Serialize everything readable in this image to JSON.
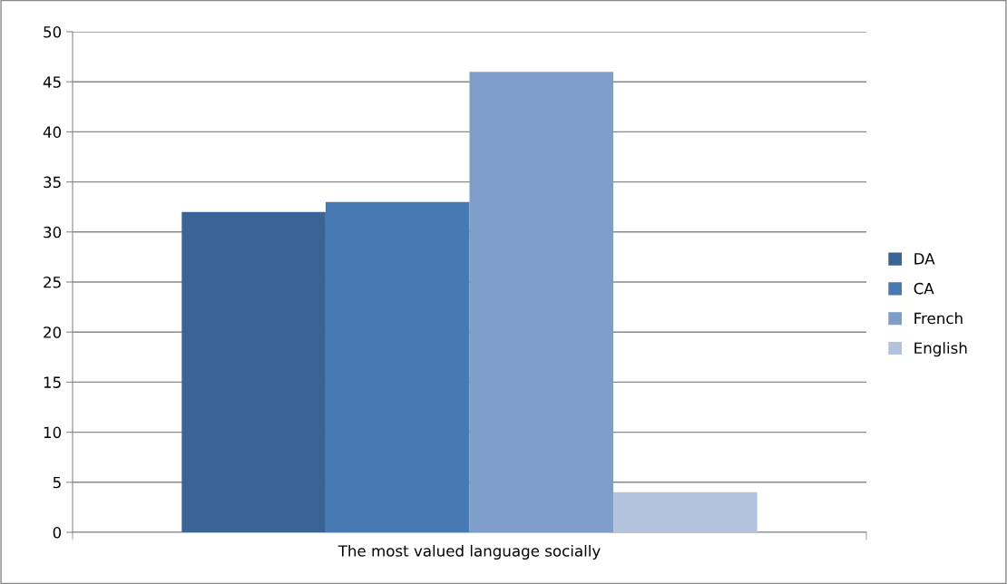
{
  "chart_data": {
    "type": "bar",
    "categories": [
      "The most valued language socially"
    ],
    "series": [
      {
        "name": "DA",
        "color": "#3b6496",
        "values": [
          32
        ]
      },
      {
        "name": "CA",
        "color": "#4779b2",
        "values": [
          33
        ]
      },
      {
        "name": "French",
        "color": "#7e9dc9",
        "values": [
          46
        ]
      },
      {
        "name": "English",
        "color": "#b3c3de",
        "values": [
          4
        ]
      }
    ],
    "ylim": [
      0,
      50
    ],
    "yticks": [
      0,
      5,
      10,
      15,
      20,
      25,
      30,
      35,
      40,
      45,
      50
    ],
    "grid": "y",
    "legend": "right"
  }
}
